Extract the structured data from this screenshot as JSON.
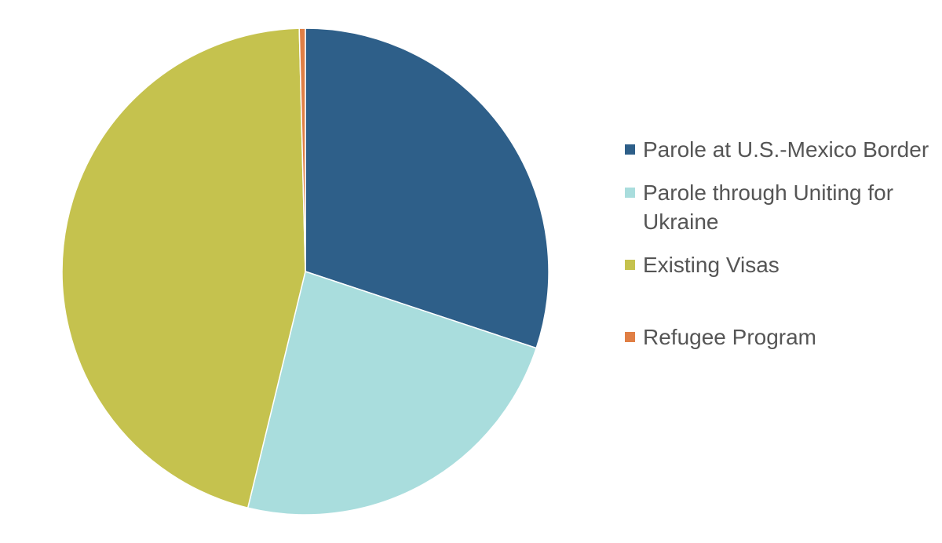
{
  "chart_data": {
    "type": "pie",
    "title": "",
    "start_angle_deg": 0,
    "direction": "clockwise",
    "legend_position": "right",
    "series": [
      {
        "labels": [
          "Parole at U.S.-Mexico Border",
          "Parole through Uniting for Ukraine",
          "Existing Visas",
          "Refugee Program"
        ],
        "values": [
          30.1,
          23.7,
          45.8,
          0.4
        ],
        "colors": [
          "#2e5f89",
          "#a9dddd",
          "#c5c24e",
          "#e07f45"
        ]
      }
    ]
  },
  "legend": {
    "items": [
      {
        "label": "Parole at U.S.-Mexico Border",
        "color": "#2e5f89"
      },
      {
        "label": "Parole through Uniting for Ukraine",
        "color": "#a9dddd"
      },
      {
        "label": "Existing Visas",
        "color": "#c5c24e"
      },
      {
        "label": "Refugee Program",
        "color": "#e07f45"
      }
    ]
  }
}
